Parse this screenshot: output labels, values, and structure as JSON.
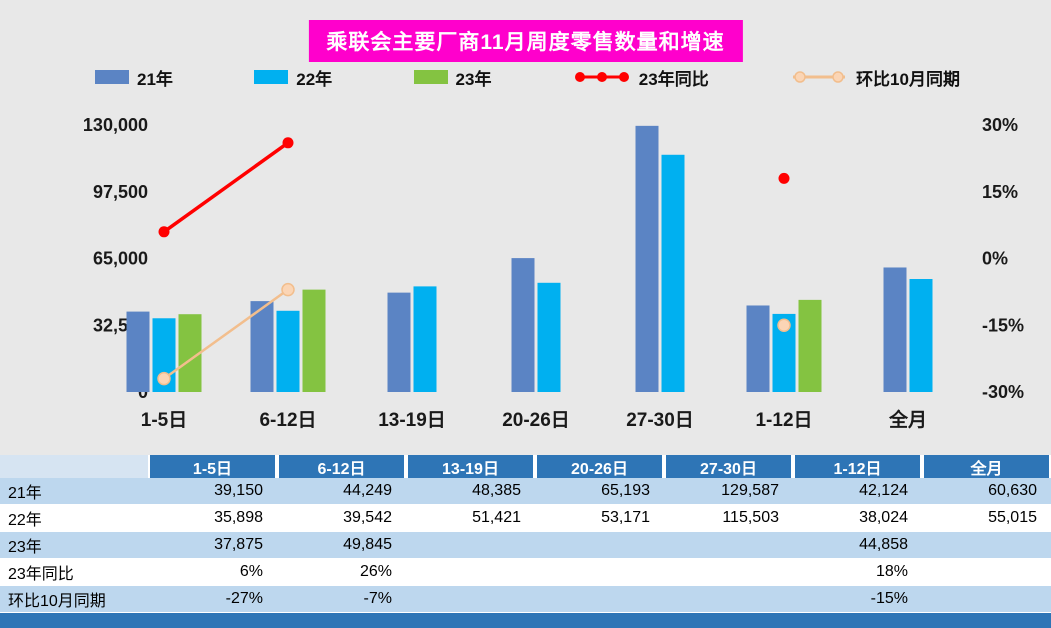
{
  "title": "乘联会主要厂商11月周度零售数量和增速",
  "colors": {
    "page_bg": "#E8E8E8",
    "title_bg": "#FF00CC",
    "title_text": "#FFFFFF",
    "bar_21": "#5B84C4",
    "bar_22": "#00B0F0",
    "bar_23": "#84C341",
    "line_yoy": "#FF0000",
    "line_mom": "#F2BE8D",
    "line_mom_marker_fill": "#FBD5B5",
    "table_header_bg": "#2E75B6",
    "table_header_text": "#FFFFFF",
    "row_alt_bg": "#BDD7EE",
    "row_bg": "#FFFFFF",
    "footer_bar_bg": "#2E75B6",
    "axis_text": "#1A1A1A"
  },
  "chart_data": {
    "type": "bar",
    "subtype": "bar+line combo, dual axis",
    "title": "乘联会主要厂商11月周度零售数量和增速",
    "categories": [
      "1-5日",
      "6-12日",
      "13-19日",
      "20-26日",
      "27-30日",
      "1-12日",
      "全月"
    ],
    "bar_series": [
      {
        "name": "21年",
        "color": "#5B84C4",
        "values": [
          39150,
          44249,
          48385,
          65193,
          129587,
          42124,
          60630
        ]
      },
      {
        "name": "22年",
        "color": "#00B0F0",
        "values": [
          35898,
          39542,
          51421,
          53171,
          115503,
          38024,
          55015
        ]
      },
      {
        "name": "23年",
        "color": "#84C341",
        "values": [
          37875,
          49845,
          null,
          null,
          null,
          44858,
          null
        ]
      }
    ],
    "line_series": [
      {
        "name": "23年同比",
        "color": "#FF0000",
        "marker_fill": "#FF0000",
        "marker_stroke": "none",
        "stroke_width": 3.5,
        "marker_r": 5.5,
        "values": [
          6,
          26,
          null,
          null,
          null,
          18,
          null
        ]
      },
      {
        "name": "环比10月同期",
        "color": "#F2BE8D",
        "marker_fill": "#FBD5B5",
        "marker_stroke": "#F2BE8D",
        "stroke_width": 2.5,
        "marker_r": 6,
        "values": [
          -27,
          -7,
          null,
          null,
          null,
          -15,
          null
        ]
      }
    ],
    "left_axis": {
      "min": 0,
      "max": 130000,
      "tick_values": [
        130000,
        97500,
        65000,
        32500,
        0
      ],
      "tick_labels": [
        "130,000",
        "97,500",
        "65,000",
        "32,500",
        "0"
      ]
    },
    "right_axis": {
      "min": -30,
      "max": 30,
      "tick_values": [
        30,
        15,
        0,
        -15,
        -30
      ],
      "tick_labels": [
        "30%",
        "15%",
        "0%",
        "-15%",
        "-30%"
      ]
    },
    "legend": [
      {
        "label": "21年",
        "type": "bar",
        "color": "#5B84C4"
      },
      {
        "label": "22年",
        "type": "bar",
        "color": "#00B0F0"
      },
      {
        "label": "23年",
        "type": "bar",
        "color": "#84C341"
      },
      {
        "label": "23年同比",
        "type": "line",
        "color": "#FF0000",
        "marker_fill": "#FF0000",
        "marker_stroke": "none",
        "dots": 3
      },
      {
        "label": "环比10月同期",
        "type": "line",
        "color": "#F2BE8D",
        "marker_fill": "#FBD5B5",
        "marker_stroke": "#F2BE8D",
        "dots": 2
      }
    ],
    "grid": false,
    "legend_position": "top"
  },
  "table": {
    "header": [
      "",
      "1-5日",
      "6-12日",
      "13-19日",
      "20-26日",
      "27-30日",
      "1-12日",
      "全月"
    ],
    "rows": [
      {
        "label": "21年",
        "cells": [
          "39,150",
          "44,249",
          "48,385",
          "65,193",
          "129,587",
          "42,124",
          "60,630"
        ]
      },
      {
        "label": "22年",
        "cells": [
          "35,898",
          "39,542",
          "51,421",
          "53,171",
          "115,503",
          "38,024",
          "55,015"
        ]
      },
      {
        "label": "23年",
        "cells": [
          "37,875",
          "49,845",
          "",
          "",
          "",
          "44,858",
          ""
        ]
      },
      {
        "label": "23年同比",
        "cells": [
          "6%",
          "26%",
          "",
          "",
          "",
          "18%",
          ""
        ]
      },
      {
        "label": "环比10月同期",
        "cells": [
          "-27%",
          "-7%",
          "",
          "",
          "",
          "-15%",
          ""
        ]
      }
    ]
  }
}
